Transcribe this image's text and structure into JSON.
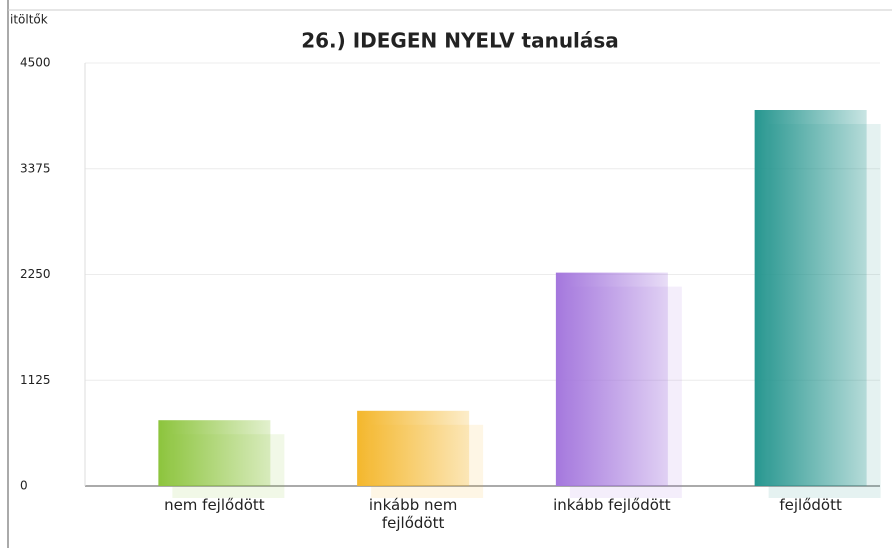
{
  "chart_data": {
    "type": "bar",
    "title": "26.) IDEGEN NYELV tanulása",
    "y_label": "itöltők",
    "categories": [
      "nem fejlődött",
      "inkább nem fejlődött",
      "inkább fejlődött",
      "fejlődött"
    ],
    "values": [
      700,
      800,
      2270,
      4000
    ],
    "colors": [
      "#8cc43c",
      "#f4b72c",
      "#a477dd",
      "#26968f"
    ],
    "ylim": [
      0,
      4500
    ],
    "yticks": [
      0,
      1125,
      2250,
      3375,
      4500
    ],
    "grid": true
  }
}
